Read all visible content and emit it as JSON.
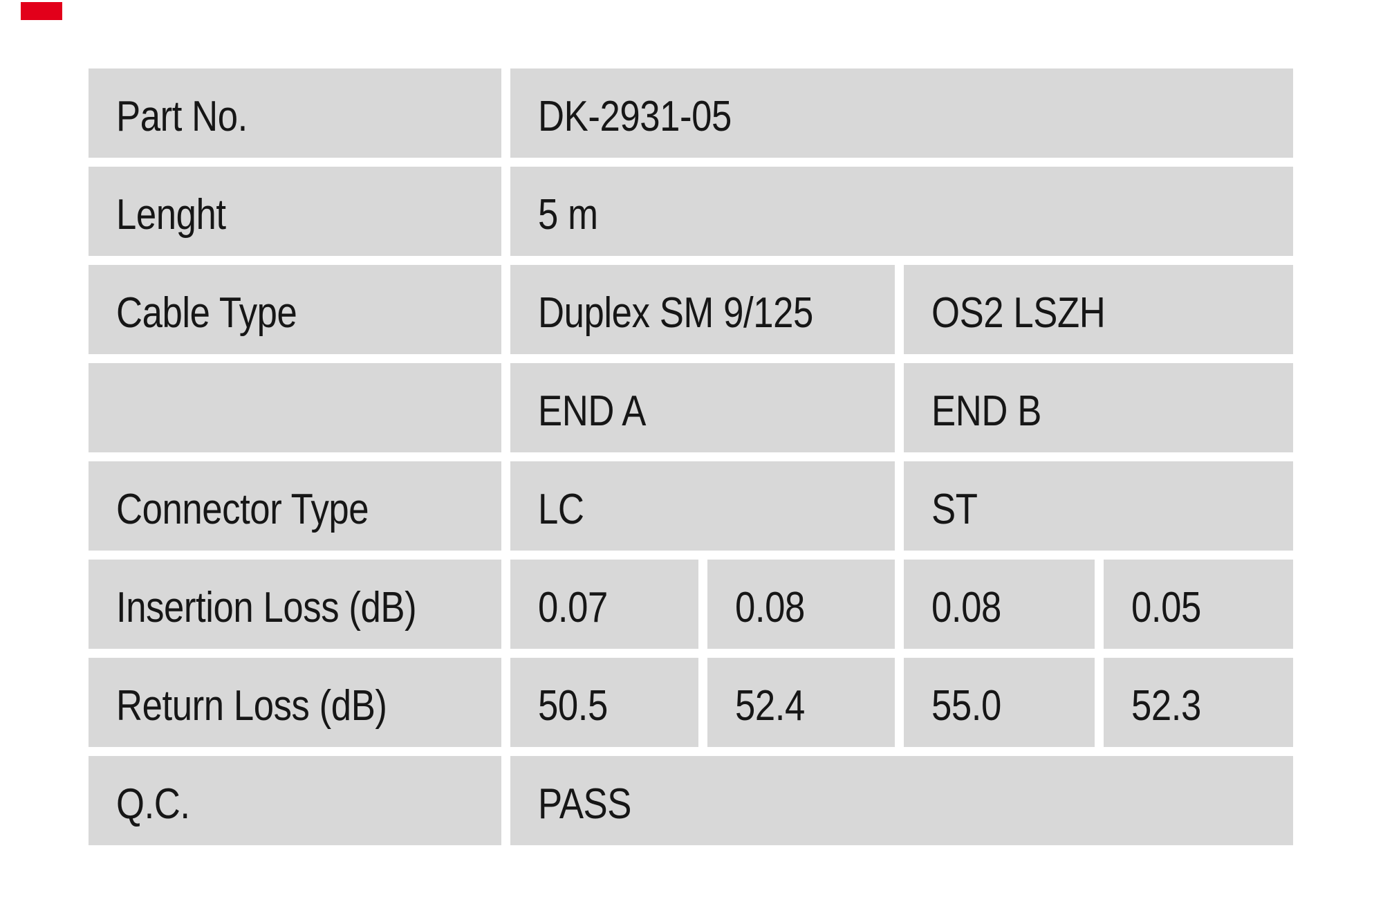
{
  "colors": {
    "page_bg": "#ffffff",
    "cell_bg": "#d8d8d8",
    "text": "#161616",
    "badge_red": "#e2001a"
  },
  "table": {
    "part_no": {
      "label": "Part No.",
      "value": "DK-2931-05"
    },
    "length": {
      "label": "Lenght",
      "value": "5 m"
    },
    "cable_type": {
      "label": "Cable Type",
      "value_left": "Duplex SM 9/125",
      "value_right": "OS2 LSZH"
    },
    "ends": {
      "end_a": "END A",
      "end_b": "END B"
    },
    "connector_type": {
      "label": "Connector Type",
      "end_a": "LC",
      "end_b": "ST"
    },
    "insertion_loss": {
      "label": "Insertion Loss (dB)",
      "values": [
        "0.07",
        "0.08",
        "0.08",
        "0.05"
      ]
    },
    "return_loss": {
      "label": "Return Loss (dB)",
      "values": [
        "50.5",
        "52.4",
        "55.0",
        "52.3"
      ]
    },
    "qc": {
      "label": "Q.C.",
      "value": "PASS"
    }
  }
}
